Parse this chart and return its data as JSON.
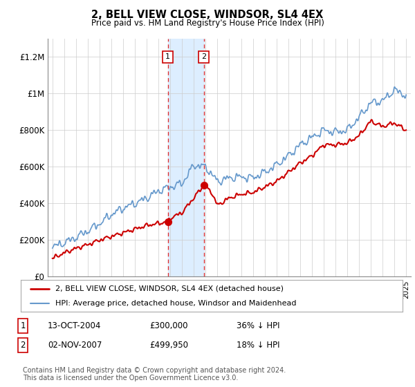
{
  "title": "2, BELL VIEW CLOSE, WINDSOR, SL4 4EX",
  "subtitle": "Price paid vs. HM Land Registry's House Price Index (HPI)",
  "ylim": [
    0,
    1300000
  ],
  "yticks": [
    0,
    200000,
    400000,
    600000,
    800000,
    1000000,
    1200000
  ],
  "ytick_labels": [
    "£0",
    "£200K",
    "£400K",
    "£600K",
    "£800K",
    "£1M",
    "£1.2M"
  ],
  "purchase1_year": 2004.79,
  "purchase1_price": 300000,
  "purchase2_year": 2007.84,
  "purchase2_price": 499950,
  "legend_line1": "2, BELL VIEW CLOSE, WINDSOR, SL4 4EX (detached house)",
  "legend_line2": "HPI: Average price, detached house, Windsor and Maidenhead",
  "table_row1": [
    "1",
    "13-OCT-2004",
    "£300,000",
    "36% ↓ HPI"
  ],
  "table_row2": [
    "2",
    "02-NOV-2007",
    "£499,950",
    "18% ↓ HPI"
  ],
  "footer": "Contains HM Land Registry data © Crown copyright and database right 2024.\nThis data is licensed under the Open Government Licence v3.0.",
  "line_color_red": "#cc0000",
  "line_color_blue": "#6699cc",
  "shade_color": "#ddeeff",
  "background_color": "#ffffff",
  "hpi_anchors_years": [
    1995,
    1996,
    1997,
    1998,
    1999,
    2000,
    2001,
    2002,
    2003,
    2004,
    2005,
    2006,
    2007,
    2008,
    2009,
    2010,
    2011,
    2012,
    2013,
    2014,
    2015,
    2016,
    2017,
    2018,
    2019,
    2020,
    2021,
    2022,
    2023,
    2024,
    2025
  ],
  "hpi_anchors_vals": [
    162000,
    185000,
    215000,
    250000,
    290000,
    340000,
    375000,
    400000,
    430000,
    468750,
    490000,
    510000,
    609695,
    600000,
    520000,
    540000,
    545000,
    540000,
    570000,
    610000,
    660000,
    720000,
    760000,
    800000,
    790000,
    800000,
    870000,
    950000,
    960000,
    1020000,
    990000
  ],
  "red_anchors_years": [
    1995,
    1996,
    1997,
    1998,
    1999,
    2000,
    2001,
    2002,
    2003,
    2004.79,
    2005,
    2006,
    2007.84,
    2008.5,
    2009,
    2010,
    2011,
    2012,
    2013,
    2014,
    2015,
    2016,
    2017,
    2018,
    2019,
    2020,
    2021,
    2022,
    2023,
    2024,
    2025
  ],
  "red_anchors_vals": [
    100000,
    130000,
    155000,
    175000,
    200000,
    220000,
    240000,
    260000,
    280000,
    300000,
    320000,
    350000,
    499950,
    460000,
    390000,
    430000,
    450000,
    460000,
    490000,
    520000,
    570000,
    620000,
    660000,
    720000,
    720000,
    730000,
    770000,
    850000,
    820000,
    840000,
    800000
  ]
}
